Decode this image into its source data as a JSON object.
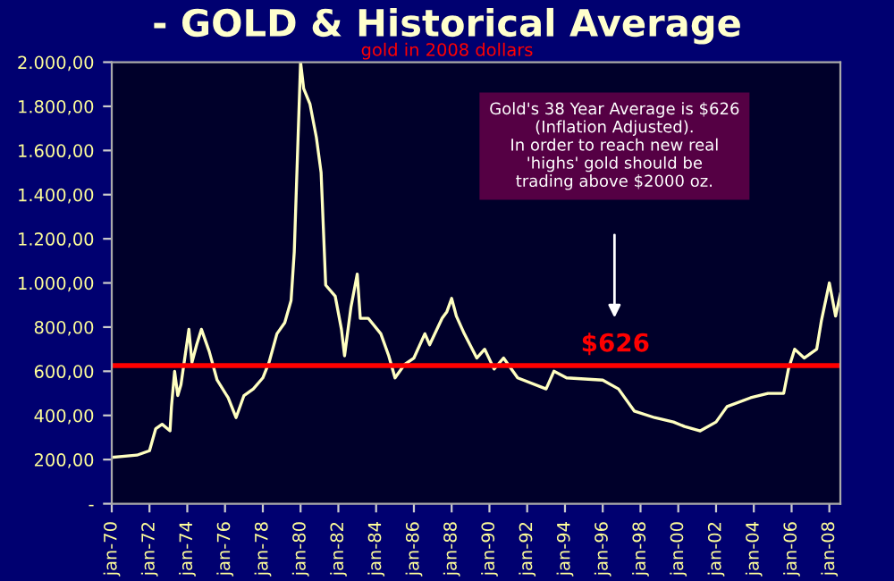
{
  "chart_data": {
    "type": "line",
    "title": "- GOLD & Historical Average",
    "subtitle": "gold in 2008 dollars",
    "x": [
      "1970-01",
      "1971-05",
      "1972-01",
      "1972-05",
      "1972-09",
      "1973-02",
      "1973-03",
      "1973-05",
      "1973-07",
      "1973-09",
      "1974-02",
      "1974-04",
      "1974-07",
      "1974-10",
      "1975-03",
      "1975-08",
      "1976-03",
      "1976-08",
      "1977-01",
      "1977-07",
      "1978-01",
      "1978-05",
      "1978-10",
      "1979-03",
      "1979-07",
      "1979-09",
      "1980-01",
      "1980-03",
      "1980-07",
      "1980-11",
      "1981-02",
      "1981-05",
      "1981-11",
      "1982-03",
      "1982-05",
      "1982-09",
      "1983-01",
      "1983-03",
      "1983-08",
      "1984-04",
      "1984-09",
      "1985-01",
      "1985-07",
      "1986-01",
      "1986-08",
      "1986-11",
      "1987-07",
      "1987-10",
      "1988-01",
      "1988-04",
      "1988-09",
      "1989-05",
      "1989-10",
      "1990-04",
      "1990-10",
      "1991-07",
      "1993-01",
      "1993-06",
      "1994-02",
      "1996-01",
      "1996-11",
      "1997-09",
      "1998-10",
      "1999-10",
      "2000-05",
      "2001-03",
      "2002-01",
      "2002-08",
      "2003-11",
      "2004-10",
      "2005-08",
      "2005-11",
      "2006-03",
      "2006-09",
      "2007-05",
      "2007-08",
      "2008-01",
      "2008-05",
      "2008-08"
    ],
    "series": [
      {
        "color": "#ffffc0",
        "values": [
          210,
          220,
          240,
          340,
          360,
          330,
          440,
          600,
          490,
          540,
          790,
          640,
          720,
          790,
          690,
          560,
          480,
          390,
          490,
          520,
          570,
          640,
          770,
          820,
          920,
          1140,
          2000,
          1880,
          1810,
          1660,
          1500,
          990,
          940,
          790,
          670,
          890,
          1040,
          840,
          840,
          770,
          670,
          570,
          630,
          660,
          770,
          720,
          840,
          870,
          930,
          850,
          770,
          660,
          700,
          610,
          660,
          570,
          520,
          600,
          570,
          560,
          520,
          420,
          390,
          370,
          350,
          330,
          370,
          440,
          480,
          500,
          500,
          610,
          700,
          660,
          700,
          830,
          1000,
          850,
          950
        ]
      }
    ],
    "xlim": [
      "1970-01",
      "2008-08"
    ],
    "xticks": [
      {
        "value": "1970-01",
        "label": "jan-70"
      },
      {
        "value": "1972-01",
        "label": "jan-72"
      },
      {
        "value": "1974-01",
        "label": "jan-74"
      },
      {
        "value": "1976-01",
        "label": "jan-76"
      },
      {
        "value": "1978-01",
        "label": "jan-78"
      },
      {
        "value": "1980-01",
        "label": "jan-80"
      },
      {
        "value": "1982-01",
        "label": "jan-82"
      },
      {
        "value": "1984-01",
        "label": "jan-84"
      },
      {
        "value": "1986-01",
        "label": "jan-86"
      },
      {
        "value": "1988-01",
        "label": "jan-88"
      },
      {
        "value": "1990-01",
        "label": "jan-90"
      },
      {
        "value": "1992-01",
        "label": "jan-92"
      },
      {
        "value": "1994-01",
        "label": "jan-94"
      },
      {
        "value": "1996-01",
        "label": "jan-96"
      },
      {
        "value": "1998-01",
        "label": "jan-98"
      },
      {
        "value": "2000-01",
        "label": "jan-00"
      },
      {
        "value": "2002-01",
        "label": "jan-02"
      },
      {
        "value": "2004-01",
        "label": "jan-04"
      },
      {
        "value": "2006-01",
        "label": "jan-06"
      },
      {
        "value": "2008-01",
        "label": "jan-08"
      }
    ],
    "ylim": [
      0,
      2000
    ],
    "yticks": [
      {
        "value": 0,
        "label": "-"
      },
      {
        "value": 200,
        "label": "200,00"
      },
      {
        "value": 400,
        "label": "400,00"
      },
      {
        "value": 600,
        "label": "600,00"
      },
      {
        "value": 800,
        "label": "800,00"
      },
      {
        "value": 1000,
        "label": "1.000,00"
      },
      {
        "value": 1200,
        "label": "1.200,00"
      },
      {
        "value": 1400,
        "label": "1.400,00"
      },
      {
        "value": 1600,
        "label": "1.600,00"
      },
      {
        "value": 1800,
        "label": "1.800,00"
      },
      {
        "value": 2000,
        "label": "2.000,00"
      }
    ],
    "ref_lines": [
      {
        "axis": "y",
        "value": 626,
        "label": "$626",
        "color": "#ff0000"
      }
    ],
    "annotations": [
      "Gold's 38 Year Average is $626\n(Inflation Adjusted).\nIn order to reach new real\n'highs' gold should be\ntrading above $2000 oz."
    ],
    "grid": false,
    "legend": false
  }
}
